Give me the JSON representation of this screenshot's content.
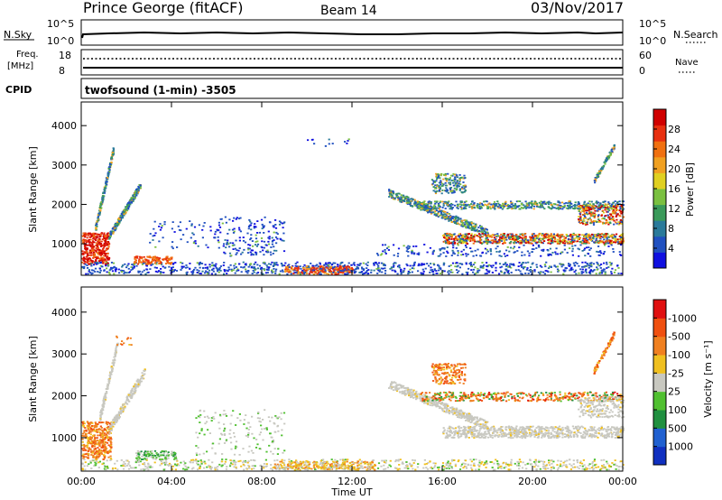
{
  "header": {
    "station": "Prince George (fitACF)",
    "beam": "Beam 14",
    "date": "03/Nov/2017"
  },
  "noise_panel": {
    "left_label": "N.Sky",
    "left_ticks": [
      "10^5",
      "10^0"
    ],
    "right_ticks": [
      "10^5",
      "10^0"
    ],
    "right_label": "N.Search"
  },
  "freq_panel": {
    "left_label_1": "Freq.",
    "left_label_2": "[MHz]",
    "left_ticks": [
      "18",
      "8"
    ],
    "right_ticks": [
      "60",
      "0"
    ],
    "right_label": "Nave",
    "cpid_label": "CPID",
    "cpid_text": "twofsound (1-min) -3505"
  },
  "chart_data": [
    {
      "type": "heatmap",
      "name": "power",
      "ylabel": "Slant Range [km]",
      "y_ticks": [
        "1000",
        "2000",
        "3000",
        "4000"
      ],
      "ylim": [
        200,
        4600
      ],
      "colorbar": {
        "label": "Power [dB]",
        "ticks": [
          "4",
          "8",
          "12",
          "16",
          "20",
          "24",
          "28"
        ],
        "colors": [
          "#1010e0",
          "#2050c0",
          "#2a7a9a",
          "#3a9a5a",
          "#7ac040",
          "#e0d020",
          "#f0a020",
          "#f07010",
          "#e83010",
          "#d00000"
        ]
      },
      "x_ticks": [
        "00:00",
        "04:00",
        "08:00",
        "12:00",
        "16:00",
        "20:00",
        "00:00"
      ]
    },
    {
      "type": "heatmap",
      "name": "velocity",
      "ylabel": "Slant Range [km]",
      "y_ticks": [
        "1000",
        "2000",
        "3000",
        "4000"
      ],
      "ylim": [
        200,
        4600
      ],
      "colorbar": {
        "label": "Velocity [m s⁻¹]",
        "ticks": [
          "1000",
          "500",
          "100",
          "25",
          "-25",
          "-100",
          "-500",
          "-1000"
        ],
        "colors": [
          "#1030c0",
          "#2060d0",
          "#209040",
          "#50c030",
          "#c8c8c0",
          "#f0c020",
          "#f08020",
          "#f05010",
          "#e01010"
        ]
      },
      "x_ticks": [
        "00:00",
        "04:00",
        "08:00",
        "12:00",
        "16:00",
        "20:00",
        "00:00"
      ],
      "xlabel": "Time UT"
    }
  ]
}
